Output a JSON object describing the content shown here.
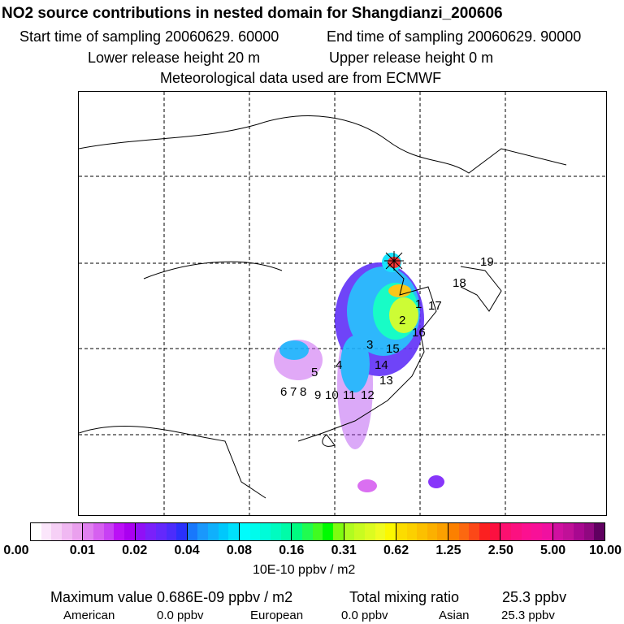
{
  "header": {
    "title": "NO2 source contributions in nested domain for Shangdianzi_200606",
    "start_label": "Start time of sampling 20060629. 60000",
    "end_label": "End time of sampling 20060629. 90000",
    "lower_label": "Lower release height   20 m",
    "upper_label": "Upper release height    0 m",
    "met_label": "Meteorological data used are from ECMWF"
  },
  "chart_data": {
    "type": "heatmap",
    "title": "NO2 source contributions in nested domain for Shangdianzi_200606",
    "colorbar": {
      "ticks": [
        "0.00",
        "0.01",
        "0.02",
        "0.04",
        "0.08",
        "0.16",
        "0.31",
        "0.62",
        "1.25",
        "2.50",
        "5.00",
        "10.00"
      ],
      "unit": "10E-10 ppbv / m2",
      "groups": [
        [
          "#ffffff",
          "#fbe6fb",
          "#f6d0f6",
          "#f0b8f2",
          "#eaa0ee"
        ],
        [
          "#e080f0",
          "#d660f0",
          "#c840f4",
          "#bb10f6",
          "#aa00f0"
        ],
        [
          "#9010f6",
          "#7a20fa",
          "#6428fc",
          "#4c2cfc",
          "#2a30fc"
        ],
        [
          "#1878fc",
          "#1a98fc",
          "#10b0fc",
          "#00c8fc",
          "#00e0fc"
        ],
        [
          "#00fcfc",
          "#00fcec",
          "#00fcd8",
          "#00fcc0",
          "#00fca8"
        ],
        [
          "#00fc80",
          "#20fc50",
          "#40fc20",
          "#00fc00",
          "#80fc10"
        ],
        [
          "#b0fc20",
          "#c8fc20",
          "#dcfc20",
          "#f0fc20",
          "#fcf800"
        ],
        [
          "#fcdc00",
          "#fcd000",
          "#fcc000",
          "#fcb000",
          "#fca000"
        ],
        [
          "#fc8000",
          "#fc6810",
          "#fc4818",
          "#fc2020",
          "#fc1040"
        ],
        [
          "#fc1070",
          "#fc1080",
          "#fc1090",
          "#f81098",
          "#f010a0"
        ],
        [
          "#d010a0",
          "#c01098",
          "#a80890",
          "#900880",
          "#600060"
        ]
      ]
    },
    "receptor": "Shangdianzi",
    "source_region_labels": [
      "1",
      "2",
      "3",
      "4",
      "5",
      "6",
      "7",
      "8",
      "9",
      "10",
      "11",
      "12",
      "13",
      "14",
      "15",
      "16",
      "17",
      "18",
      "19"
    ]
  },
  "footer": {
    "max_label": "Maximum value  0.686E-09 ppbv / m2",
    "total_label": "Total mixing ratio",
    "total_value": "25.3 ppbv",
    "american_label": "American",
    "american_value": "0.0 ppbv",
    "european_label": "European",
    "european_value": "0.0 ppbv",
    "asian_label": "Asian",
    "asian_value": "25.3 ppbv"
  }
}
